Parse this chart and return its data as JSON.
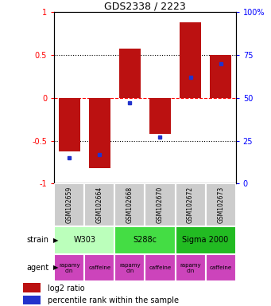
{
  "title": "GDS2338 / 2223",
  "samples": [
    "GSM102659",
    "GSM102664",
    "GSM102668",
    "GSM102670",
    "GSM102672",
    "GSM102673"
  ],
  "log2_ratio": [
    -0.62,
    -0.82,
    0.58,
    -0.42,
    0.88,
    0.5
  ],
  "percentile": [
    15,
    17,
    47,
    27,
    62,
    70
  ],
  "ylim_left": [
    -1,
    1
  ],
  "ylim_right": [
    0,
    100
  ],
  "yticks_left": [
    -1,
    -0.5,
    0,
    0.5,
    1
  ],
  "yticks_right": [
    0,
    25,
    50,
    75,
    100
  ],
  "ytick_labels_left": [
    "-1",
    "-0.5",
    "0",
    "0.5",
    "1"
  ],
  "ytick_labels_right": [
    "0",
    "25",
    "50",
    "75",
    "100%"
  ],
  "hlines_dotted": [
    -0.5,
    0.5
  ],
  "hline_dashed": 0,
  "bar_color": "#bb1111",
  "dot_color": "#2233cc",
  "strains": [
    {
      "label": "W303",
      "cols": [
        0,
        1
      ],
      "color": "#bbffbb"
    },
    {
      "label": "S288c",
      "cols": [
        2,
        3
      ],
      "color": "#44dd44"
    },
    {
      "label": "Sigma 2000",
      "cols": [
        4,
        5
      ],
      "color": "#22bb22"
    }
  ],
  "agents": [
    {
      "label": "rapamycin",
      "col": 0,
      "color": "#cc44bb"
    },
    {
      "label": "caffeine",
      "col": 1,
      "color": "#cc44bb"
    },
    {
      "label": "rapamycin",
      "col": 2,
      "color": "#cc44bb"
    },
    {
      "label": "caffeine",
      "col": 3,
      "color": "#cc44bb"
    },
    {
      "label": "rapamycin",
      "col": 4,
      "color": "#cc44bb"
    },
    {
      "label": "caffeine",
      "col": 5,
      "color": "#cc44bb"
    }
  ],
  "legend_bar_color": "#bb1111",
  "legend_dot_color": "#2233cc",
  "legend_label1": "log2 ratio",
  "legend_label2": "percentile rank within the sample",
  "strain_label": "strain",
  "agent_label": "agent",
  "sample_box_color": "#cccccc",
  "bar_width": 0.7
}
